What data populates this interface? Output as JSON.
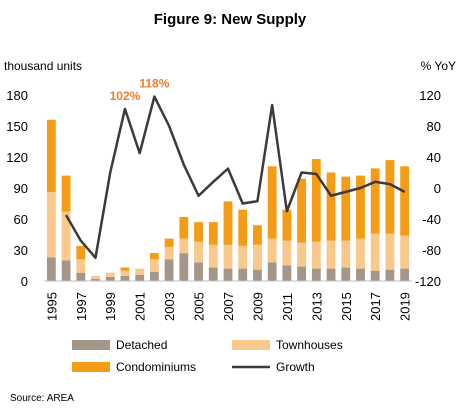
{
  "chart_data": {
    "type": "bar",
    "stacked": true,
    "title": "Figure 9: New Supply",
    "ylabel_left": "thousand units",
    "ylabel_right": "% YoY",
    "source": "Source: AREA",
    "categories": [
      "1995",
      "1996",
      "1997",
      "1998",
      "1999",
      "2000",
      "2001",
      "2002",
      "2003",
      "2004",
      "2005",
      "2006",
      "2007",
      "2008",
      "2009",
      "2010",
      "2011",
      "2012",
      "2013",
      "2014",
      "2015",
      "2016",
      "2017",
      "2018",
      "2019"
    ],
    "x_tick_labels": [
      "1995",
      "1997",
      "1999",
      "2001",
      "2003",
      "2005",
      "2007",
      "2009",
      "2011",
      "2013",
      "2015",
      "2017",
      "2019"
    ],
    "y_left": {
      "min": 0,
      "max": 180,
      "ticks": [
        "0",
        "30",
        "60",
        "90",
        "120",
        "150",
        "180"
      ]
    },
    "y_right": {
      "min": -120,
      "max": 120,
      "ticks": [
        "-120",
        "-80",
        "-40",
        "0",
        "40",
        "80",
        "120"
      ]
    },
    "series": [
      {
        "name": "Detached",
        "type": "bar",
        "axis": "left",
        "color": "#A5968A",
        "values": [
          23,
          20,
          8,
          2,
          4,
          5,
          6,
          9,
          21,
          27,
          18,
          13,
          12,
          12,
          11,
          18,
          15,
          14,
          12,
          12,
          13,
          12,
          10,
          11,
          12
        ]
      },
      {
        "name": "Townhouses",
        "type": "bar",
        "axis": "left",
        "color": "#F9C98C",
        "values": [
          63,
          47,
          13,
          3,
          4,
          5,
          6,
          12,
          12,
          14,
          20,
          22,
          23,
          22,
          24,
          23,
          24,
          23,
          26,
          27,
          26,
          29,
          36,
          35,
          32
        ]
      },
      {
        "name": "Condominiums",
        "type": "bar",
        "axis": "left",
        "color": "#F59C17",
        "values": [
          70,
          35,
          13,
          0,
          0,
          3,
          0,
          6,
          8,
          21,
          19,
          22,
          42,
          35,
          19,
          70,
          30,
          62,
          80,
          66,
          62,
          61,
          63,
          71,
          67
        ]
      },
      {
        "name": "Growth",
        "type": "line",
        "axis": "right",
        "color": "#3F3939",
        "values": [
          null,
          -35,
          -68,
          -90,
          20,
          102,
          45,
          118,
          80,
          30,
          -10,
          8,
          25,
          -20,
          -17,
          107,
          -30,
          20,
          18,
          -10,
          -5,
          0,
          8,
          5,
          -5
        ]
      }
    ],
    "annotations": [
      {
        "text": "102%",
        "category": "2000"
      },
      {
        "text": "118%",
        "category": "2002"
      }
    ],
    "legend": {
      "position": "bottom",
      "entries": [
        "Detached",
        "Townhouses",
        "Condominiums",
        "Growth"
      ]
    }
  }
}
